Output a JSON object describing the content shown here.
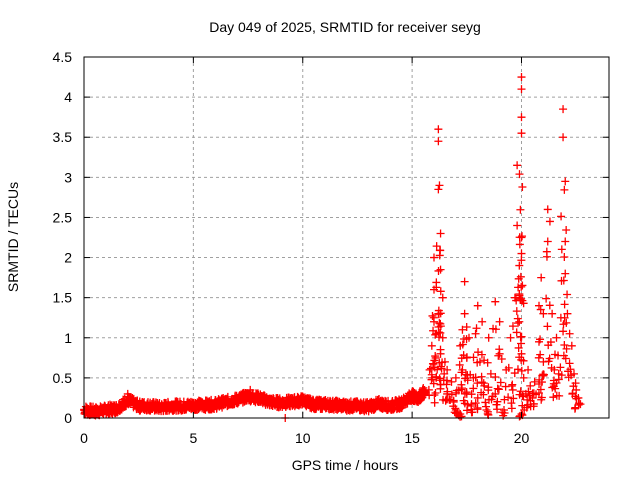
{
  "chart_data": {
    "type": "scatter",
    "title": "Day 049 of 2025, SRMTID for receiver seyg",
    "xlabel": "GPS time / hours",
    "ylabel": "SRMTID / TECUs",
    "xlim": [
      0,
      24
    ],
    "ylim": [
      0,
      4.5
    ],
    "xticks": [
      "0",
      "5",
      "10",
      "15",
      "20"
    ],
    "xtick_values": [
      0,
      5,
      10,
      15,
      20
    ],
    "yticks": [
      "0",
      "0.5",
      "1",
      "1.5",
      "2",
      "2.5",
      "3",
      "3.5",
      "4",
      "4.5"
    ],
    "ytick_values": [
      0,
      0.5,
      1,
      1.5,
      2,
      2.5,
      3,
      3.5,
      4,
      4.5
    ],
    "grid": true,
    "marker": "+",
    "color": "#ff0000",
    "baseline_segments": [
      {
        "x": 0.0,
        "y": 0.1
      },
      {
        "x": 0.5,
        "y": 0.08
      },
      {
        "x": 1.0,
        "y": 0.1
      },
      {
        "x": 1.5,
        "y": 0.12
      },
      {
        "x": 2.0,
        "y": 0.22
      },
      {
        "x": 2.5,
        "y": 0.15
      },
      {
        "x": 3.0,
        "y": 0.15
      },
      {
        "x": 3.5,
        "y": 0.13
      },
      {
        "x": 4.0,
        "y": 0.15
      },
      {
        "x": 4.5,
        "y": 0.15
      },
      {
        "x": 5.0,
        "y": 0.16
      },
      {
        "x": 5.5,
        "y": 0.16
      },
      {
        "x": 6.0,
        "y": 0.17
      },
      {
        "x": 6.5,
        "y": 0.2
      },
      {
        "x": 7.0,
        "y": 0.23
      },
      {
        "x": 7.5,
        "y": 0.27
      },
      {
        "x": 8.0,
        "y": 0.25
      },
      {
        "x": 8.5,
        "y": 0.2
      },
      {
        "x": 9.0,
        "y": 0.19
      },
      {
        "x": 9.5,
        "y": 0.2
      },
      {
        "x": 10.0,
        "y": 0.22
      },
      {
        "x": 10.5,
        "y": 0.17
      },
      {
        "x": 11.0,
        "y": 0.17
      },
      {
        "x": 11.5,
        "y": 0.16
      },
      {
        "x": 12.0,
        "y": 0.15
      },
      {
        "x": 12.5,
        "y": 0.15
      },
      {
        "x": 13.0,
        "y": 0.14
      },
      {
        "x": 13.5,
        "y": 0.18
      },
      {
        "x": 14.0,
        "y": 0.15
      },
      {
        "x": 14.5,
        "y": 0.18
      },
      {
        "x": 15.0,
        "y": 0.28
      },
      {
        "x": 15.3,
        "y": 0.24
      },
      {
        "x": 15.6,
        "y": 0.35
      }
    ],
    "outliers": [
      {
        "x": 2.0,
        "y": 0.3
      },
      {
        "x": 9.2,
        "y": 0.0
      },
      {
        "x": 7.6,
        "y": 0.35
      }
    ],
    "active_points": [
      {
        "x": 15.8,
        "y": 0.6
      },
      {
        "x": 15.9,
        "y": 0.9
      },
      {
        "x": 16.0,
        "y": 1.2
      },
      {
        "x": 16.0,
        "y": 2.0
      },
      {
        "x": 16.0,
        "y": 1.6
      },
      {
        "x": 16.1,
        "y": 1.05
      },
      {
        "x": 16.1,
        "y": 0.5
      },
      {
        "x": 16.2,
        "y": 1.3
      },
      {
        "x": 16.2,
        "y": 2.85
      },
      {
        "x": 16.2,
        "y": 3.6
      },
      {
        "x": 16.2,
        "y": 3.45
      },
      {
        "x": 16.25,
        "y": 2.9
      },
      {
        "x": 16.3,
        "y": 2.3
      },
      {
        "x": 16.3,
        "y": 1.85
      },
      {
        "x": 16.3,
        "y": 0.8
      },
      {
        "x": 16.4,
        "y": 1.0
      },
      {
        "x": 16.4,
        "y": 1.5
      },
      {
        "x": 16.5,
        "y": 0.7
      },
      {
        "x": 16.6,
        "y": 0.6
      },
      {
        "x": 16.6,
        "y": 0.3
      },
      {
        "x": 16.8,
        "y": 0.45
      },
      {
        "x": 16.9,
        "y": 0.2
      },
      {
        "x": 17.0,
        "y": 0.1
      },
      {
        "x": 17.0,
        "y": 0.5
      },
      {
        "x": 17.2,
        "y": 0.9
      },
      {
        "x": 17.2,
        "y": 0.05
      },
      {
        "x": 17.3,
        "y": 1.1
      },
      {
        "x": 17.3,
        "y": 0.6
      },
      {
        "x": 17.4,
        "y": 1.7
      },
      {
        "x": 17.4,
        "y": 1.3
      },
      {
        "x": 17.5,
        "y": 0.3
      },
      {
        "x": 17.5,
        "y": 0.75
      },
      {
        "x": 17.6,
        "y": 1.0
      },
      {
        "x": 17.7,
        "y": 0.15
      },
      {
        "x": 17.8,
        "y": 0.5
      },
      {
        "x": 17.9,
        "y": 1.05
      },
      {
        "x": 18.0,
        "y": 1.4
      },
      {
        "x": 18.0,
        "y": 0.25
      },
      {
        "x": 18.1,
        "y": 0.7
      },
      {
        "x": 18.2,
        "y": 1.2
      },
      {
        "x": 18.3,
        "y": 0.4
      },
      {
        "x": 18.4,
        "y": 0.1
      },
      {
        "x": 18.5,
        "y": 1.0
      },
      {
        "x": 18.6,
        "y": 0.55
      },
      {
        "x": 18.8,
        "y": 1.45
      },
      {
        "x": 18.8,
        "y": 0.3
      },
      {
        "x": 19.0,
        "y": 0.8
      },
      {
        "x": 19.0,
        "y": 1.2
      },
      {
        "x": 19.2,
        "y": 0.1
      },
      {
        "x": 19.3,
        "y": 0.6
      },
      {
        "x": 19.5,
        "y": 1.0
      },
      {
        "x": 19.6,
        "y": 0.35
      },
      {
        "x": 19.7,
        "y": 1.5
      },
      {
        "x": 19.8,
        "y": 2.4
      },
      {
        "x": 19.8,
        "y": 3.15
      },
      {
        "x": 19.9,
        "y": 1.2
      },
      {
        "x": 19.9,
        "y": 1.9
      },
      {
        "x": 20.0,
        "y": 4.25
      },
      {
        "x": 20.0,
        "y": 4.1
      },
      {
        "x": 20.0,
        "y": 3.75
      },
      {
        "x": 20.0,
        "y": 3.55
      },
      {
        "x": 20.0,
        "y": 2.25
      },
      {
        "x": 20.0,
        "y": 2.05
      },
      {
        "x": 20.0,
        "y": 0.8
      },
      {
        "x": 20.0,
        "y": 0.05
      },
      {
        "x": 20.1,
        "y": 0.5
      },
      {
        "x": 20.2,
        "y": 0.3
      },
      {
        "x": 20.3,
        "y": 0.6
      },
      {
        "x": 20.4,
        "y": 0.4
      },
      {
        "x": 20.5,
        "y": 0.25
      },
      {
        "x": 20.6,
        "y": 0.45
      },
      {
        "x": 20.8,
        "y": 0.95
      },
      {
        "x": 20.8,
        "y": 1.4
      },
      {
        "x": 20.9,
        "y": 1.75
      },
      {
        "x": 21.0,
        "y": 1.3
      },
      {
        "x": 21.0,
        "y": 0.7
      },
      {
        "x": 21.2,
        "y": 2.2
      },
      {
        "x": 21.2,
        "y": 2.6
      },
      {
        "x": 21.3,
        "y": 2.45
      },
      {
        "x": 21.4,
        "y": 1.3
      },
      {
        "x": 21.5,
        "y": 0.6
      },
      {
        "x": 21.6,
        "y": 1.0
      },
      {
        "x": 21.7,
        "y": 0.55
      },
      {
        "x": 21.8,
        "y": 1.25
      },
      {
        "x": 21.9,
        "y": 3.85
      },
      {
        "x": 21.9,
        "y": 3.5
      },
      {
        "x": 22.0,
        "y": 2.95
      },
      {
        "x": 22.0,
        "y": 2.2
      },
      {
        "x": 22.0,
        "y": 1.8
      },
      {
        "x": 22.1,
        "y": 1.3
      },
      {
        "x": 22.2,
        "y": 1.05
      },
      {
        "x": 22.3,
        "y": 0.9
      },
      {
        "x": 22.4,
        "y": 0.55
      },
      {
        "x": 22.5,
        "y": 0.35
      },
      {
        "x": 22.6,
        "y": 0.25
      }
    ]
  }
}
